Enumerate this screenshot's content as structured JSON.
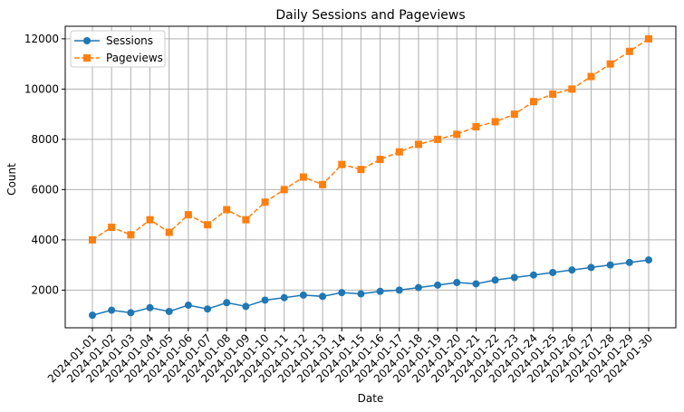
{
  "chart_data": {
    "type": "line",
    "title": "Daily Sessions and Pageviews",
    "xlabel": "Date",
    "ylabel": "Count",
    "x": [
      "2024-01-01",
      "2024-01-02",
      "2024-01-03",
      "2024-01-04",
      "2024-01-05",
      "2024-01-06",
      "2024-01-07",
      "2024-01-08",
      "2024-01-09",
      "2024-01-10",
      "2024-01-11",
      "2024-01-12",
      "2024-01-13",
      "2024-01-14",
      "2024-01-15",
      "2024-01-16",
      "2024-01-17",
      "2024-01-18",
      "2024-01-19",
      "2024-01-20",
      "2024-01-21",
      "2024-01-22",
      "2024-01-23",
      "2024-01-24",
      "2024-01-25",
      "2024-01-26",
      "2024-01-27",
      "2024-01-28",
      "2024-01-29",
      "2024-01-30"
    ],
    "ylim": [
      500,
      12500
    ],
    "yticks": [
      2000,
      4000,
      6000,
      8000,
      10000,
      12000
    ],
    "grid": true,
    "legend_position": "top-left",
    "series": [
      {
        "name": "Sessions",
        "color": "#1f77b4",
        "marker": "circle",
        "line_style": "solid",
        "values": [
          1000,
          1200,
          1100,
          1300,
          1150,
          1400,
          1250,
          1500,
          1350,
          1600,
          1700,
          1800,
          1750,
          1900,
          1850,
          1950,
          2000,
          2100,
          2200,
          2300,
          2250,
          2400,
          2500,
          2600,
          2700,
          2800,
          2900,
          3000,
          3100,
          3200
        ]
      },
      {
        "name": "Pageviews",
        "color": "#ff7f0e",
        "marker": "square",
        "line_style": "dashed",
        "values": [
          4000,
          4500,
          4200,
          4800,
          4300,
          5000,
          4600,
          5200,
          4800,
          5500,
          6000,
          6500,
          6200,
          7000,
          6800,
          7200,
          7500,
          7800,
          8000,
          8200,
          8500,
          8700,
          9000,
          9500,
          9800,
          10000,
          10500,
          11000,
          11500,
          12000
        ]
      }
    ]
  }
}
